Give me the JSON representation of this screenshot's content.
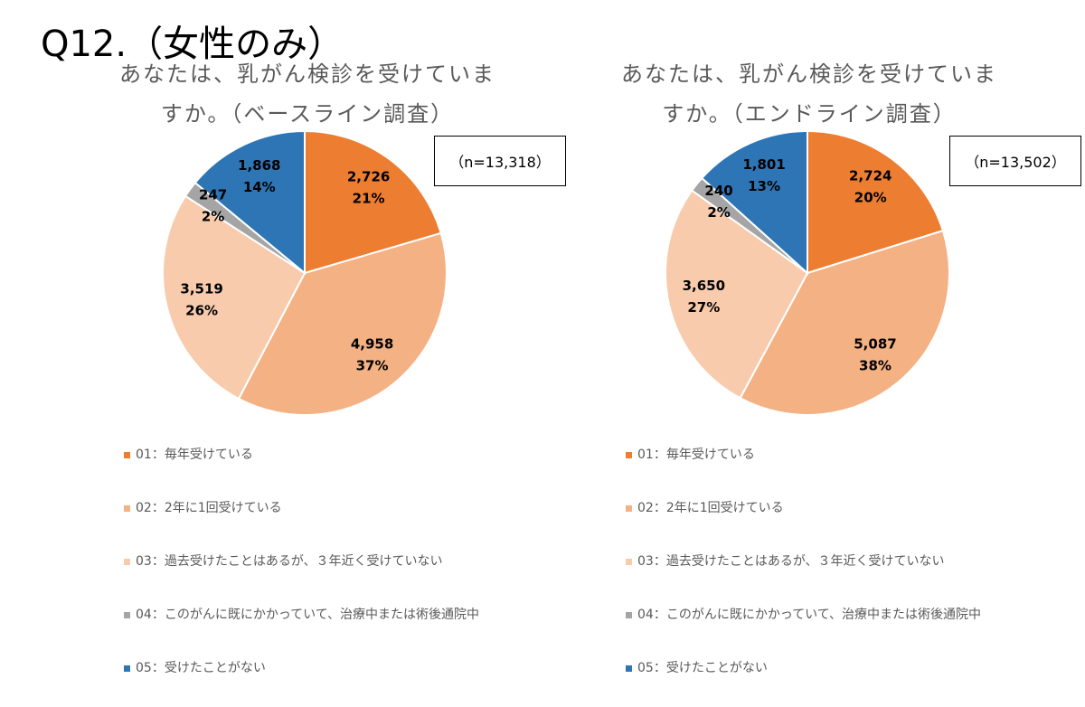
{
  "title": "Q12.（女性のみ）",
  "chart_data": [
    {
      "type": "pie",
      "title": "あなたは、乳がん検診を受けていますか。（ベースライン調査）",
      "annotation": "（n=13,318）",
      "categories": [
        "01：毎年受けている",
        "02：2年に1回受けている",
        "03：過去受けたことはあるが、３年近く受けていない",
        "04：このがんに既にかかっていて、治療中または術後通院中",
        "05：受けたことがない"
      ],
      "values": [
        2726,
        4958,
        3519,
        247,
        1868
      ],
      "value_labels": [
        "2,726",
        "4,958",
        "3,519",
        "247",
        "1,868"
      ],
      "percentages": [
        21,
        37,
        26,
        2,
        14
      ],
      "percent_labels": [
        "21%",
        "37%",
        "26%",
        "2%",
        "14%"
      ],
      "colors": [
        "#ED7D31",
        "#F4B183",
        "#F8CBAD",
        "#A5A5A5",
        "#2E75B6"
      ]
    },
    {
      "type": "pie",
      "title": "あなたは、乳がん検診を受けていますか。（エンドライン調査）",
      "annotation": "（n=13,502）",
      "categories": [
        "01：毎年受けている",
        "02：2年に1回受けている",
        "03：過去受けたことはあるが、３年近く受けていない",
        "04：このがんに既にかかっていて、治療中または術後通院中",
        "05：受けたことがない"
      ],
      "values": [
        2724,
        5087,
        3650,
        240,
        1801
      ],
      "value_labels": [
        "2,724",
        "5,087",
        "3,650",
        "240",
        "1,801"
      ],
      "percentages": [
        20,
        38,
        27,
        2,
        13
      ],
      "percent_labels": [
        "20%",
        "38%",
        "27%",
        "2%",
        "13%"
      ],
      "colors": [
        "#ED7D31",
        "#F4B183",
        "#F8CBAD",
        "#A5A5A5",
        "#2E75B6"
      ]
    }
  ]
}
